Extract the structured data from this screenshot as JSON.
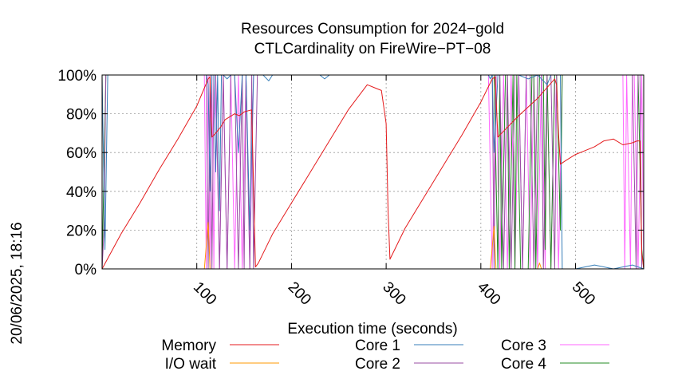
{
  "chart_data": {
    "type": "line",
    "title": "Resources Consumption for 2024−gold",
    "subtitle": "CTLCardinality on FireWire−PT−08",
    "xlabel": "Execution time (seconds)",
    "ylabel": "",
    "xlim": [
      0,
      572
    ],
    "ylim": [
      0,
      100
    ],
    "x_ticks": [
      {
        "value": 100,
        "label": "100"
      },
      {
        "value": 200,
        "label": "200"
      },
      {
        "value": 300,
        "label": "300"
      },
      {
        "value": 400,
        "label": "400"
      },
      {
        "value": 500,
        "label": "500"
      }
    ],
    "y_ticks": [
      {
        "value": 0,
        "label": "0%"
      },
      {
        "value": 20,
        "label": "20%"
      },
      {
        "value": 40,
        "label": "40%"
      },
      {
        "value": 60,
        "label": "60%"
      },
      {
        "value": 80,
        "label": "80%"
      },
      {
        "value": 100,
        "label": "100%"
      }
    ],
    "grid": true,
    "legend_position": "bottom",
    "timestamp": "20/06/2025, 18:16",
    "series": [
      {
        "name": "Memory",
        "color": "#e41a1c",
        "x": [
          0,
          20,
          40,
          60,
          80,
          100,
          112,
          114,
          116,
          120,
          125,
          130,
          140,
          145,
          150,
          158,
          162,
          165,
          180,
          200,
          220,
          240,
          260,
          280,
          290,
          295,
          300,
          302,
          304,
          320,
          340,
          360,
          380,
          400,
          412,
          415,
          418,
          420,
          440,
          460,
          478,
          480,
          482,
          484,
          490,
          500,
          510,
          520,
          530,
          540,
          550,
          560,
          565,
          568,
          570,
          572
        ],
        "y": [
          0,
          18,
          34,
          51,
          67,
          84,
          98,
          99,
          68,
          70,
          73,
          77,
          80,
          79,
          81,
          82,
          1,
          3,
          18,
          34,
          50,
          66,
          82,
          95,
          93,
          92,
          75,
          30,
          5,
          21,
          37,
          53,
          69,
          86,
          98,
          99,
          68,
          69,
          79,
          88,
          98,
          95,
          70,
          54,
          56,
          59,
          61,
          63,
          66,
          67,
          64,
          65,
          66,
          66,
          8,
          0
        ]
      },
      {
        "name": "I/O wait",
        "color": "#ff9900",
        "x": [
          0,
          108,
          112,
          114,
          118,
          410,
          414,
          416,
          420,
          460,
          462,
          464,
          572
        ],
        "y": [
          0,
          0,
          24,
          0,
          0,
          0,
          22,
          0,
          0,
          0,
          3,
          0,
          0
        ]
      },
      {
        "name": "Core 1",
        "color": "#377eb8",
        "x": [
          0,
          3,
          6,
          110,
          112,
          114,
          116,
          118,
          120,
          122,
          124,
          126,
          128,
          132,
          136,
          140,
          144,
          148,
          152,
          156,
          160,
          170,
          176,
          180,
          200,
          230,
          235,
          240,
          408,
          410,
          412,
          414,
          418,
          420,
          430,
          440,
          450,
          460,
          470,
          474,
          478,
          480,
          484,
          486,
          490,
          500,
          520,
          540,
          560,
          572
        ],
        "y": [
          100,
          10,
          100,
          100,
          95,
          40,
          100,
          100,
          50,
          100,
          30,
          100,
          100,
          98,
          100,
          100,
          60,
          100,
          100,
          20,
          100,
          100,
          97,
          100,
          100,
          100,
          98,
          100,
          100,
          98,
          100,
          60,
          100,
          100,
          100,
          100,
          98,
          100,
          95,
          100,
          100,
          100,
          100,
          0,
          0,
          0,
          2,
          0,
          2,
          0
        ]
      },
      {
        "name": "Core 2",
        "color": "#984ea3",
        "x": [
          0,
          2,
          4,
          6,
          108,
          110,
          112,
          114,
          116,
          118,
          120,
          124,
          128,
          132,
          136,
          140,
          144,
          148,
          150,
          152,
          156,
          158,
          160,
          164,
          410,
          412,
          414,
          416,
          420,
          424,
          428,
          432,
          436,
          440,
          444,
          448,
          452,
          456,
          460,
          464,
          466,
          470,
          474,
          478,
          480,
          484,
          490,
          494,
          500,
          520,
          540,
          560,
          564,
          566,
          568,
          570,
          572
        ],
        "y": [
          0,
          20,
          100,
          100,
          100,
          100,
          0,
          100,
          0,
          100,
          100,
          0,
          100,
          0,
          100,
          100,
          0,
          100,
          0,
          100,
          0,
          100,
          0,
          100,
          100,
          100,
          0,
          100,
          100,
          0,
          100,
          0,
          100,
          100,
          0,
          100,
          100,
          0,
          100,
          100,
          0,
          100,
          100,
          0,
          100,
          100,
          100,
          100,
          100,
          100,
          100,
          100,
          0,
          100,
          100,
          0,
          0
        ]
      },
      {
        "name": "Core 3",
        "color": "#ff66ff",
        "x": [
          0,
          108,
          110,
          112,
          114,
          116,
          118,
          120,
          124,
          128,
          132,
          136,
          140,
          144,
          148,
          152,
          156,
          160,
          164,
          408,
          412,
          416,
          420,
          424,
          428,
          432,
          436,
          440,
          444,
          448,
          452,
          456,
          460,
          464,
          468,
          470,
          474,
          478,
          482,
          486,
          490,
          500,
          520,
          540,
          550,
          552,
          554,
          558,
          560,
          562,
          566,
          570,
          572
        ],
        "y": [
          100,
          100,
          0,
          100,
          0,
          100,
          0,
          100,
          0,
          100,
          0,
          100,
          0,
          100,
          0,
          100,
          0,
          100,
          100,
          100,
          0,
          100,
          0,
          100,
          0,
          100,
          0,
          100,
          0,
          100,
          0,
          100,
          0,
          100,
          0,
          100,
          0,
          100,
          0,
          100,
          100,
          100,
          100,
          100,
          100,
          0,
          100,
          0,
          100,
          100,
          0,
          100,
          0
        ]
      },
      {
        "name": "Core 4",
        "color": "#238b23",
        "x": [
          0,
          4,
          6,
          410,
          414,
          418,
          420,
          422,
          426,
          428,
          430,
          434,
          436,
          438,
          442,
          446,
          450,
          454,
          456,
          458,
          462,
          466,
          468,
          470,
          474,
          478,
          480,
          484,
          486,
          490,
          494,
          500,
          560,
          566,
          570,
          572
        ],
        "y": [
          0,
          100,
          100,
          100,
          100,
          0,
          100,
          0,
          100,
          100,
          0,
          100,
          0,
          100,
          0,
          0,
          0,
          100,
          100,
          0,
          100,
          100,
          10,
          100,
          0,
          100,
          100,
          20,
          100,
          100,
          100,
          100,
          100,
          100,
          10,
          0
        ]
      }
    ]
  }
}
